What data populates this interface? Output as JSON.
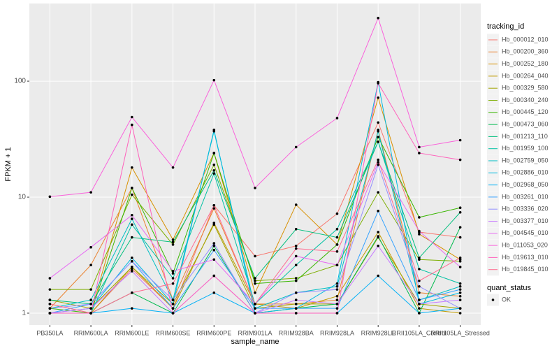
{
  "chart_data": {
    "type": "line",
    "log_y": true,
    "grid": true,
    "xlabel": "sample_name",
    "ylabel": "FPKM + 1",
    "legend_title": "tracking_id",
    "shape_legend": {
      "title": "quant_status",
      "levels": [
        "OK"
      ]
    },
    "categories": [
      "PB350LA",
      "RRIM600LA",
      "RRIM600LE",
      "RRIM600SE",
      "RRIM600PE",
      "RRIM901LA",
      "RRIM928BA",
      "RRIM928LA",
      "RRIM928LE",
      "RRII105LA_Control",
      "RRII105LA_Stressed"
    ],
    "ylim": [
      0.79,
      467
    ],
    "yticks": [
      1,
      10,
      100
    ],
    "series": [
      {
        "name": "Hb_000012_010",
        "color": "#F8766D",
        "values": [
          1.2,
          1.0,
          2.4,
          1.1,
          8.5,
          3.1,
          3.8,
          7.2,
          44,
          5.0,
          4.5
        ]
      },
      {
        "name": "Hb_000200_360",
        "color": "#EA8331",
        "values": [
          1.1,
          2.6,
          12,
          1.3,
          8,
          1.2,
          1.2,
          1.3,
          38,
          1.5,
          1.4
        ]
      },
      {
        "name": "Hb_000252_180",
        "color": "#D89000",
        "values": [
          1.0,
          1.0,
          18,
          4.3,
          24,
          1.5,
          8.6,
          3.9,
          72,
          4.8,
          2.9
        ]
      },
      {
        "name": "Hb_000264_040",
        "color": "#C09B00",
        "values": [
          1.0,
          1.0,
          2.5,
          1.1,
          6,
          1.2,
          1.1,
          1.4,
          5,
          1.1,
          1.0
        ]
      },
      {
        "name": "Hb_000329_580",
        "color": "#A3A500",
        "values": [
          1.3,
          1.1,
          2.5,
          1.2,
          5.8,
          1.1,
          1.2,
          1.2,
          4.5,
          1.2,
          1.1
        ]
      },
      {
        "name": "Hb_000340_240",
        "color": "#7CAE00",
        "values": [
          1.6,
          1.6,
          10.5,
          3.9,
          19,
          1.9,
          2,
          2.6,
          11,
          2.9,
          2.8
        ]
      },
      {
        "name": "Hb_000445_120",
        "color": "#39B600",
        "values": [
          1.1,
          1.0,
          12,
          2.2,
          24,
          1.8,
          1.9,
          3.9,
          33,
          6.7,
          8.1
        ]
      },
      {
        "name": "Hb_000473_060",
        "color": "#00BB4E",
        "values": [
          1.0,
          1.0,
          1.5,
          1.0,
          3.8,
          1.0,
          1.1,
          1.2,
          4.6,
          1.0,
          5.5
        ]
      },
      {
        "name": "Hb_001213_110",
        "color": "#00BF7D",
        "values": [
          1.3,
          1.2,
          4.5,
          4.1,
          17,
          2.0,
          5.3,
          4.5,
          30,
          3.0,
          7.4
        ]
      },
      {
        "name": "Hb_001959_100",
        "color": "#00C1A3",
        "values": [
          1.0,
          1.0,
          5.8,
          2.0,
          16,
          1.2,
          2.6,
          5.3,
          30,
          2.4,
          1.8
        ]
      },
      {
        "name": "Hb_002759_050",
        "color": "#00BFC4",
        "values": [
          1.1,
          1.3,
          6.5,
          1.3,
          37,
          1.1,
          1.5,
          1.7,
          37,
          1.3,
          1.7
        ]
      },
      {
        "name": "Hb_002886_010",
        "color": "#00BAE0",
        "values": [
          1.0,
          1.1,
          3.0,
          1.2,
          38,
          1.0,
          1.1,
          1.8,
          98,
          1.2,
          1.5
        ]
      },
      {
        "name": "Hb_002968_050",
        "color": "#00B0F6",
        "values": [
          1.0,
          1.0,
          1.1,
          1.0,
          1.5,
          1.0,
          1.0,
          1.0,
          2.1,
          1.0,
          1.1
        ]
      },
      {
        "name": "Hb_003261_010",
        "color": "#35A2FF",
        "values": [
          1.0,
          1.2,
          2.8,
          1.1,
          3.5,
          1.1,
          1.1,
          1.1,
          7.6,
          1.3,
          1.6
        ]
      },
      {
        "name": "Hb_003336_020",
        "color": "#9590FF",
        "values": [
          1.1,
          1.2,
          2.8,
          1.3,
          4,
          1.0,
          1.5,
          1.6,
          19,
          1.7,
          1.1
        ]
      },
      {
        "name": "Hb_003377_010",
        "color": "#C77CFF",
        "values": [
          1.0,
          1.1,
          2.3,
          1.0,
          2.1,
          1.0,
          1.3,
          1.2,
          3.8,
          1.2,
          1.3
        ]
      },
      {
        "name": "Hb_004545_010",
        "color": "#E76BF3",
        "values": [
          2.0,
          3.7,
          7,
          2.3,
          2.9,
          1.2,
          3.1,
          2.6,
          20,
          5.1,
          2.5
        ]
      },
      {
        "name": "Hb_011053_020",
        "color": "#FA62DB",
        "values": [
          10.1,
          11,
          49,
          18,
          102,
          12,
          27,
          48,
          350,
          27,
          31
        ]
      },
      {
        "name": "Hb_019613_010",
        "color": "#FF62BC",
        "values": [
          1.0,
          1.0,
          42,
          1.0,
          2.1,
          1.0,
          1.0,
          1.0,
          96,
          24,
          21
        ]
      },
      {
        "name": "Hb_019845_010",
        "color": "#FF6C91",
        "values": [
          1.2,
          1.0,
          1.5,
          1.8,
          8.5,
          1.2,
          3.6,
          3.4,
          21,
          1.9,
          3.0
        ]
      }
    ]
  }
}
